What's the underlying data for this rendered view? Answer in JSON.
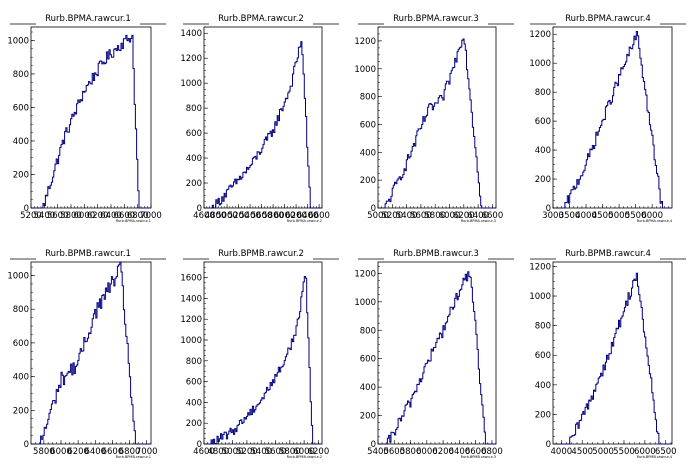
{
  "chart_data": [
    {
      "type": "histogram",
      "title": "Rurb.BPMA.rawcur.1",
      "xlabel": "Rurb.BPMA.rawcur.1",
      "xlim": [
        5200,
        7000
      ],
      "ylim": [
        0,
        1080
      ],
      "xticks": [
        5200,
        5400,
        5600,
        5800,
        6000,
        6200,
        6400,
        6600,
        6800,
        7000
      ],
      "xtick_labels": [
        "5200",
        "5400",
        "5600",
        "5800",
        "6000",
        "6200",
        "6400",
        "6600",
        "6800",
        "7000"
      ],
      "yticks": [
        0,
        200,
        400,
        600,
        800,
        1000
      ],
      "profile": {
        "start": 5380,
        "end": 6820,
        "peak": 6720,
        "peak_value": 1030,
        "shoulders": [
          [
            5700,
            420
          ],
          [
            6000,
            700
          ],
          [
            6300,
            880
          ],
          [
            6500,
            960
          ]
        ],
        "noise": 35
      }
    },
    {
      "type": "histogram",
      "title": "Rurb.BPMA.rawcur.2",
      "xlabel": "Rurb.BPMA.rawcur.2",
      "xlim": [
        4600,
        6650
      ],
      "ylim": [
        0,
        1450
      ],
      "xticks": [
        4600,
        4800,
        5000,
        5200,
        5400,
        5600,
        5800,
        6000,
        6200,
        6400,
        6600
      ],
      "xtick_labels": [
        "4600",
        "4800",
        "5000",
        "5200",
        "5400",
        "5600",
        "5800",
        "6000",
        "6200",
        "6400",
        "6600"
      ],
      "yticks": [
        0,
        200,
        400,
        600,
        800,
        1000,
        1200,
        1400
      ],
      "profile": {
        "start": 4750,
        "end": 6450,
        "peak": 6300,
        "peak_value": 1360,
        "shoulders": [
          [
            5000,
            120
          ],
          [
            5400,
            330
          ],
          [
            5800,
            620
          ],
          [
            6100,
            960
          ]
        ],
        "noise": 40
      }
    },
    {
      "type": "histogram",
      "title": "Rurb.BPMA.rawcur.3",
      "xlabel": "Rurb.BPMA.rawcur.3",
      "xlim": [
        5000,
        6650
      ],
      "ylim": [
        0,
        1300
      ],
      "xticks": [
        5000,
        5200,
        5400,
        5600,
        5800,
        6000,
        6200,
        6400,
        6600
      ],
      "xtick_labels": [
        "5000",
        "5200",
        "5400",
        "5600",
        "5800",
        "6000",
        "6200",
        "6400",
        "6600"
      ],
      "yticks": [
        0,
        200,
        400,
        600,
        800,
        1000,
        1200
      ],
      "profile": {
        "start": 5100,
        "end": 6450,
        "peak": 6200,
        "peak_value": 1260,
        "shoulders": [
          [
            5400,
            320
          ],
          [
            5700,
            700
          ],
          [
            5900,
            780
          ],
          [
            6050,
            1000
          ]
        ],
        "noise": 40
      }
    },
    {
      "type": "histogram",
      "title": "Rurb.BPMA.rawcur.4",
      "xlabel": "Rurb.BPMA.rawcur.4",
      "xlim": [
        3000,
        6600
      ],
      "ylim": [
        0,
        1250
      ],
      "xticks": [
        3000,
        3500,
        4000,
        4500,
        5000,
        5500,
        6000
      ],
      "xtick_labels": [
        "3000",
        "3500",
        "4000",
        "4500",
        "5000",
        "5500",
        "6000"
      ],
      "yticks": [
        0,
        200,
        400,
        600,
        800,
        1000,
        1200
      ],
      "profile": {
        "start": 3350,
        "end": 6300,
        "peak": 5550,
        "peak_value": 1200,
        "shoulders": [
          [
            4000,
            300
          ],
          [
            4500,
            600
          ],
          [
            5000,
            900
          ]
        ],
        "noise": 38
      }
    },
    {
      "type": "histogram",
      "title": "Rurb.BPMB.rawcur.1",
      "xlabel": "Rurb.BPMB.rawcur.1",
      "xlim": [
        5650,
        7050
      ],
      "ylim": [
        0,
        1080
      ],
      "xticks": [
        5800,
        6000,
        6200,
        6400,
        6600,
        6800,
        7000
      ],
      "xtick_labels": [
        "5800",
        "6000",
        "6200",
        "6400",
        "6600",
        "6800",
        "7000"
      ],
      "yticks": [
        0,
        200,
        400,
        600,
        800,
        1000
      ],
      "profile": {
        "start": 5760,
        "end": 6870,
        "peak": 6700,
        "peak_value": 1040,
        "shoulders": [
          [
            6000,
            380
          ],
          [
            6200,
            480
          ],
          [
            6400,
            780
          ],
          [
            6600,
            960
          ]
        ],
        "noise": 45
      }
    },
    {
      "type": "histogram",
      "title": "Rurb.BPMB.rawcur.2",
      "xlabel": "Rurb.BPMB.rawcur.2",
      "xlim": [
        4600,
        6250
      ],
      "ylim": [
        0,
        1750
      ],
      "xticks": [
        4600,
        4800,
        5000,
        5200,
        5400,
        5600,
        5800,
        6000,
        6200
      ],
      "xtick_labels": [
        "4600",
        "4800",
        "5000",
        "5200",
        "5400",
        "5600",
        "5800",
        "6000",
        "6200"
      ],
      "yticks": [
        0,
        200,
        400,
        600,
        800,
        1000,
        1200,
        1400,
        1600
      ],
      "profile": {
        "start": 4700,
        "end": 6120,
        "peak": 6020,
        "peak_value": 1680,
        "shoulders": [
          [
            5000,
            120
          ],
          [
            5400,
            420
          ],
          [
            5700,
            760
          ],
          [
            5900,
            1100
          ]
        ],
        "noise": 45
      }
    },
    {
      "type": "histogram",
      "title": "Rurb.BPMB.rawcur.3",
      "xlabel": "Rurb.BPMB.rawcur.3",
      "xlim": [
        5400,
        6850
      ],
      "ylim": [
        0,
        1280
      ],
      "xticks": [
        5400,
        5600,
        5800,
        6000,
        6200,
        6400,
        6600,
        6800
      ],
      "xtick_labels": [
        "5400",
        "5600",
        "5800",
        "6000",
        "6200",
        "6400",
        "6600",
        "6800"
      ],
      "yticks": [
        0,
        200,
        400,
        600,
        800,
        1000,
        1200
      ],
      "profile": {
        "start": 5520,
        "end": 6720,
        "peak": 6540,
        "peak_value": 1210,
        "shoulders": [
          [
            5800,
            300
          ],
          [
            6000,
            560
          ],
          [
            6200,
            800
          ],
          [
            6400,
            1080
          ]
        ],
        "noise": 42
      }
    },
    {
      "type": "histogram",
      "title": "Rurb.BPMB.rawcur.4",
      "xlabel": "Rurb.BPMB.rawcur.4",
      "xlim": [
        3800,
        6650
      ],
      "ylim": [
        0,
        1230
      ],
      "xticks": [
        4000,
        4500,
        5000,
        5500,
        6000,
        6500
      ],
      "xtick_labels": [
        "4000",
        "4500",
        "5000",
        "5500",
        "6000",
        "6500"
      ],
      "yticks": [
        0,
        200,
        400,
        600,
        800,
        1000,
        1200
      ],
      "profile": {
        "start": 4200,
        "end": 6350,
        "peak": 5800,
        "peak_value": 1150,
        "shoulders": [
          [
            4700,
            300
          ],
          [
            5200,
            650
          ],
          [
            5500,
            900
          ]
        ],
        "noise": 40
      }
    }
  ]
}
